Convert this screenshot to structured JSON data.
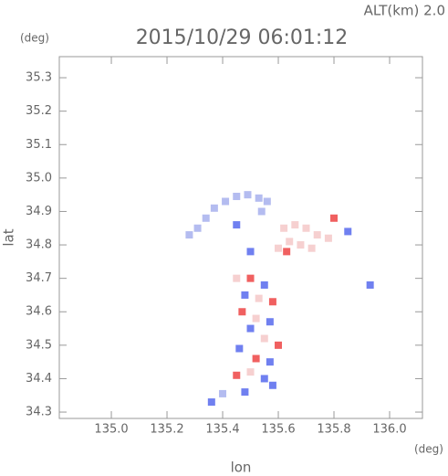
{
  "chart_data": {
    "type": "scatter",
    "title": "2015/10/29 06:01:12",
    "subtitle": "ALT(km) 2.0",
    "y_unit": "(deg)",
    "x_unit": "(deg)",
    "ylabel": "lat",
    "xlabel": "lon",
    "xlim": [
      134.813,
      136.118
    ],
    "ylim": [
      34.281,
      35.363
    ],
    "xticks": [
      {
        "value": 135,
        "label": "135.0"
      },
      135.2,
      135.4,
      135.6,
      135.8,
      {
        "value": 136,
        "label": "136.0"
      }
    ],
    "yticks": [
      34.3,
      34.4,
      34.5,
      34.6,
      34.7,
      34.8,
      34.9,
      {
        "value": 35,
        "label": "35.0"
      },
      35.1,
      35.2,
      35.3
    ],
    "x": [
      135.28,
      135.31,
      135.34,
      135.37,
      135.41,
      135.45,
      135.49,
      135.53,
      135.56,
      135.54,
      135.62,
      135.66,
      135.7,
      135.74,
      135.78,
      135.64,
      135.68,
      135.72,
      135.6,
      135.63,
      135.8,
      135.45,
      135.5,
      135.93,
      135.85,
      135.45,
      135.5,
      135.55,
      135.48,
      135.53,
      135.58,
      135.47,
      135.52,
      135.57,
      135.5,
      135.55,
      135.6,
      135.46,
      135.52,
      135.57,
      135.5,
      135.55,
      135.45,
      135.58,
      135.48,
      135.4,
      135.36
    ],
    "y": [
      34.83,
      34.85,
      34.88,
      34.91,
      34.93,
      34.945,
      34.95,
      34.94,
      34.93,
      34.9,
      34.85,
      34.86,
      34.85,
      34.83,
      34.82,
      34.81,
      34.8,
      34.79,
      34.79,
      34.78,
      34.88,
      34.86,
      34.78,
      34.68,
      34.84,
      34.7,
      34.7,
      34.68,
      34.65,
      34.64,
      34.63,
      34.6,
      34.58,
      34.57,
      34.55,
      34.52,
      34.5,
      34.49,
      34.46,
      34.45,
      34.42,
      34.4,
      34.41,
      34.38,
      34.36,
      34.355,
      34.33
    ],
    "colors": [
      "#b4bcf0",
      "#b4bcf0",
      "#b4bcf0",
      "#b4bcf0",
      "#b4bcf0",
      "#b4bcf0",
      "#b4bcf0",
      "#b4bcf0",
      "#b4bcf0",
      "#b4bcf0",
      "#f6d0d0",
      "#f6d0d0",
      "#f6d0d0",
      "#f6d0d0",
      "#f6d0d0",
      "#f6d0d0",
      "#f6d0d0",
      "#f6d0d0",
      "#f6d0d0",
      "#f06060",
      "#f06060",
      "#7080f0",
      "#7080f0",
      "#7080f0",
      "#7080f0",
      "#f6d0d0",
      "#f06060",
      "#7080f0",
      "#7080f0",
      "#f6d0d0",
      "#f06060",
      "#f06060",
      "#f6d0d0",
      "#7080f0",
      "#7080f0",
      "#f6d0d0",
      "#f06060",
      "#7080f0",
      "#f06060",
      "#7080f0",
      "#f6d0d0",
      "#7080f0",
      "#f06060",
      "#7080f0",
      "#7080f0",
      "#b4bcf0",
      "#7080f0"
    ]
  }
}
